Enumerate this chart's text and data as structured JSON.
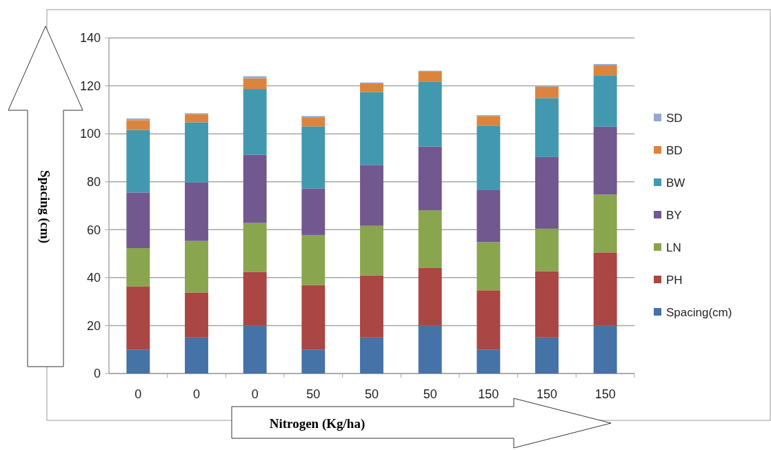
{
  "chart_data": {
    "type": "bar",
    "stacked": true,
    "xlabel": "Nitrogen (Kg/ha)",
    "ylabel": "Spacing (cm)",
    "categories": [
      "0",
      "0",
      "0",
      "50",
      "50",
      "50",
      "150",
      "150",
      "150"
    ],
    "series": [
      {
        "name": "Spacing(cm)",
        "color": "#4572a7",
        "values": [
          10,
          15,
          20,
          10,
          15,
          20,
          10,
          15,
          20
        ]
      },
      {
        "name": "PH",
        "color": "#aa4643",
        "values": [
          26.4,
          18.8,
          22.3,
          26.9,
          25.9,
          24,
          24.7,
          27.7,
          30.5
        ]
      },
      {
        "name": "LN",
        "color": "#89a54e",
        "values": [
          15.9,
          21.5,
          20.5,
          20.9,
          20.7,
          24.1,
          20.1,
          17.7,
          24.1
        ]
      },
      {
        "name": "BY",
        "color": "#71588f",
        "values": [
          23.2,
          24.5,
          28.5,
          19.4,
          25.4,
          26.6,
          21.9,
          29.9,
          28.4
        ]
      },
      {
        "name": "BW",
        "color": "#4198af",
        "values": [
          26.1,
          25,
          27.4,
          25.9,
          30.4,
          27.1,
          26.7,
          24.6,
          21.4
        ]
      },
      {
        "name": "BD",
        "color": "#db843d",
        "values": [
          4.1,
          3.4,
          4.5,
          3.8,
          3.6,
          4.1,
          4,
          4.8,
          4.1
        ]
      },
      {
        "name": "SD",
        "color": "#93a9cf",
        "values": [
          0.7,
          0.4,
          0.8,
          0.5,
          0.4,
          0.4,
          0.4,
          0.3,
          0.6
        ]
      }
    ],
    "ylim": [
      0,
      140
    ],
    "yticks": [
      0,
      20,
      40,
      60,
      80,
      100,
      120,
      140
    ],
    "grid": "y",
    "legend": "right"
  }
}
